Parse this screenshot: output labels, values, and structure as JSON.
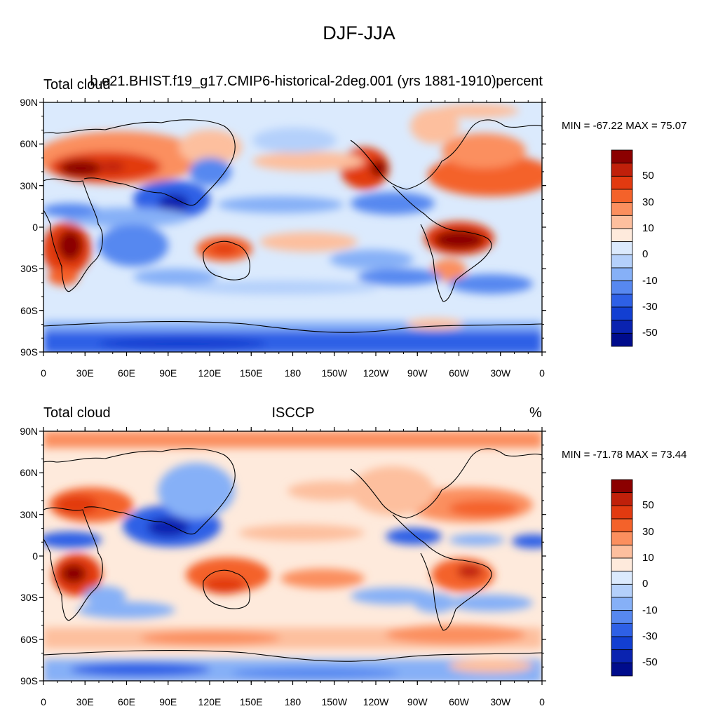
{
  "figure_title": "DJF-JJA",
  "panels": [
    {
      "left_title": "Total cloud",
      "center_title": "b.e21.BHIST.f19_g17.CMIP6-historical-2deg.001 (yrs 1881-1910)",
      "right_title": "percent",
      "stats": "MIN = -67.22 MAX =  75.07"
    },
    {
      "left_title": "Total cloud",
      "center_title": "ISCCP",
      "right_title": "%",
      "stats": "MIN = -71.78 MAX =  73.44"
    }
  ],
  "lat_ticks": [
    "90N",
    "60N",
    "30N",
    "0",
    "30S",
    "60S",
    "90S"
  ],
  "lon_ticks": [
    "0",
    "30E",
    "60E",
    "90E",
    "120E",
    "150E",
    "180",
    "150W",
    "120W",
    "90W",
    "60W",
    "30W",
    "0"
  ],
  "colorbar": {
    "labels": [
      "50",
      "30",
      "10",
      "0",
      "-10",
      "-30",
      "-50"
    ],
    "colors": [
      "#8b0000",
      "#c0200a",
      "#e23a10",
      "#f4622a",
      "#fb8f5e",
      "#fdbf9e",
      "#feeadc",
      "#dbeafd",
      "#b4d0fb",
      "#86b0f7",
      "#5788f0",
      "#2e60e6",
      "#123fd2",
      "#0a23b0",
      "#000c8c"
    ]
  },
  "map_colors": {
    "deep_red": "#8b0000",
    "red": "#e23a10",
    "orange": "#f4622a",
    "salmon": "#fb8f5e",
    "peach": "#fdbf9e",
    "cream": "#feeadc",
    "pale_blue": "#dbeafd",
    "light_blue": "#b4d0fb",
    "blue": "#86b0f7",
    "mid_blue": "#5788f0",
    "strong_blue": "#2e60e6",
    "deep_blue": "#123fd2",
    "navy": "#0a23b0"
  }
}
